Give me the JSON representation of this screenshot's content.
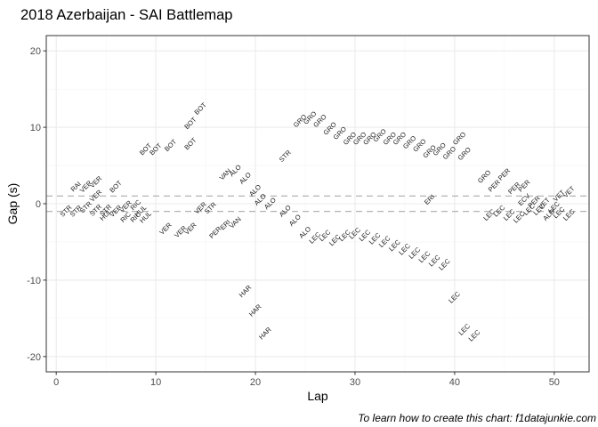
{
  "chart_data": {
    "type": "scatter",
    "title": "2018 Azerbaijan - SAI Battlemap",
    "xlabel": "Lap",
    "ylabel": "Gap (s)",
    "caption": "To learn how to create this chart: f1datajunkie.com",
    "xlim": [
      -1,
      53.5
    ],
    "ylim": [
      -22,
      22
    ],
    "x_ticks": [
      0,
      10,
      20,
      30,
      40,
      50
    ],
    "x_minor_ticks": [
      5,
      15,
      25,
      35,
      45
    ],
    "y_ticks": [
      -20,
      -10,
      0,
      10,
      20
    ],
    "y_minor_ticks": [
      -15,
      -5,
      5,
      15
    ],
    "grid": true,
    "reference_lines": [
      1,
      -1
    ],
    "colors": {
      "default_label": "#1a1a1a",
      "highlight_label": "#f8766d",
      "reference_line": "#b3b3b3",
      "grid_major": "#ebebeb",
      "grid_minor": "#f4f4f4",
      "panel_border": "#333333"
    },
    "points": [
      {
        "x": 1,
        "y": -1.0,
        "label": "STR"
      },
      {
        "x": 2,
        "y": 2.2,
        "label": "RAI"
      },
      {
        "x": 2,
        "y": -1.0,
        "label": "STR"
      },
      {
        "x": 3,
        "y": 2.2,
        "label": "VER"
      },
      {
        "x": 3,
        "y": -0.5,
        "label": "STR"
      },
      {
        "x": 4,
        "y": 2.8,
        "label": "VER"
      },
      {
        "x": 4,
        "y": 1.0,
        "label": "VER"
      },
      {
        "x": 4,
        "y": -0.9,
        "label": "STR"
      },
      {
        "x": 5,
        "y": -0.9,
        "label": "STR"
      },
      {
        "x": 5,
        "y": -1.5,
        "label": "HUL"
      },
      {
        "x": 6,
        "y": -1.0,
        "label": "VER"
      },
      {
        "x": 6,
        "y": 2.2,
        "label": "BOT"
      },
      {
        "x": 7,
        "y": -0.4,
        "label": "VER"
      },
      {
        "x": 7,
        "y": -1.8,
        "label": "RIC"
      },
      {
        "x": 8,
        "y": -0.2,
        "label": "RIC"
      },
      {
        "x": 8,
        "y": -1.8,
        "label": "RIC"
      },
      {
        "x": 8.5,
        "y": -1.0,
        "label": "HUL"
      },
      {
        "x": 9,
        "y": -1.8,
        "label": "HUL"
      },
      {
        "x": 9,
        "y": 7.1,
        "label": "BOT"
      },
      {
        "x": 10,
        "y": 7.1,
        "label": "BOT"
      },
      {
        "x": 11.5,
        "y": 7.6,
        "label": "BOT"
      },
      {
        "x": 13.5,
        "y": 7.8,
        "label": "BOT"
      },
      {
        "x": 13.5,
        "y": 10.5,
        "label": "BOT"
      },
      {
        "x": 14.5,
        "y": 12.4,
        "label": "BOT"
      },
      {
        "x": 11,
        "y": -3.3,
        "label": "VER"
      },
      {
        "x": 12.5,
        "y": -3.7,
        "label": "VER"
      },
      {
        "x": 13.5,
        "y": -3.3,
        "label": "VER"
      },
      {
        "x": 14.5,
        "y": -0.6,
        "label": "VER"
      },
      {
        "x": 15.5,
        "y": -0.6,
        "label": "STR"
      },
      {
        "x": 16,
        "y": -3.8,
        "label": "PER"
      },
      {
        "x": 17,
        "y": -2.8,
        "label": "ERI"
      },
      {
        "x": 18,
        "y": -2.5,
        "label": "VAN"
      },
      {
        "x": 17,
        "y": 3.8,
        "label": "VAN"
      },
      {
        "x": 18,
        "y": 4.3,
        "label": "ALO"
      },
      {
        "x": 19,
        "y": 3.3,
        "label": "ALO"
      },
      {
        "x": 20,
        "y": 1.7,
        "label": "ALO"
      },
      {
        "x": 20.5,
        "y": 0.5,
        "label": "ALO"
      },
      {
        "x": 21.5,
        "y": 0.0,
        "label": "ALO"
      },
      {
        "x": 23,
        "y": -1.0,
        "label": "ALO"
      },
      {
        "x": 24,
        "y": -2.2,
        "label": "ALO"
      },
      {
        "x": 23,
        "y": 6.2,
        "label": "STR"
      },
      {
        "x": 24.5,
        "y": 10.8,
        "label": "GRO"
      },
      {
        "x": 25.5,
        "y": 11.2,
        "label": "GRO"
      },
      {
        "x": 26.5,
        "y": 10.8,
        "label": "GRO"
      },
      {
        "x": 27.5,
        "y": 9.8,
        "label": "GRO"
      },
      {
        "x": 28.5,
        "y": 9.2,
        "label": "GRO"
      },
      {
        "x": 29.5,
        "y": 8.5,
        "label": "GRO"
      },
      {
        "x": 30.5,
        "y": 8.5,
        "label": "GRO"
      },
      {
        "x": 31.5,
        "y": 8.5,
        "label": "GRO"
      },
      {
        "x": 32.5,
        "y": 8.9,
        "label": "GRO"
      },
      {
        "x": 33.5,
        "y": 8.5,
        "label": "GRO"
      },
      {
        "x": 34.5,
        "y": 8.5,
        "label": "GRO"
      },
      {
        "x": 35.5,
        "y": 8.0,
        "label": "GRO"
      },
      {
        "x": 36.5,
        "y": 7.6,
        "label": "GRO"
      },
      {
        "x": 37.5,
        "y": 6.8,
        "label": "GRO"
      },
      {
        "x": 38.5,
        "y": 7.1,
        "label": "GRO"
      },
      {
        "x": 39.5,
        "y": 6.6,
        "label": "GRO"
      },
      {
        "x": 40.5,
        "y": 8.5,
        "label": "GRO"
      },
      {
        "x": 41,
        "y": 6.5,
        "label": "GRO"
      },
      {
        "x": 25,
        "y": -3.8,
        "label": "ALO"
      },
      {
        "x": 26,
        "y": -4.5,
        "label": "LEC"
      },
      {
        "x": 27,
        "y": -4.2,
        "label": "LEC"
      },
      {
        "x": 28,
        "y": -4.8,
        "label": "LEC"
      },
      {
        "x": 29,
        "y": -4.2,
        "label": "LEC"
      },
      {
        "x": 30,
        "y": -3.9,
        "label": "LEC"
      },
      {
        "x": 31,
        "y": -4.2,
        "label": "LEC"
      },
      {
        "x": 32,
        "y": -4.6,
        "label": "LEC"
      },
      {
        "x": 33,
        "y": -5.0,
        "label": "LEC"
      },
      {
        "x": 34,
        "y": -5.5,
        "label": "LEC"
      },
      {
        "x": 35,
        "y": -6.0,
        "label": "LEC"
      },
      {
        "x": 36,
        "y": -6.5,
        "label": "LEC"
      },
      {
        "x": 37,
        "y": -7.0,
        "label": "LEC"
      },
      {
        "x": 38,
        "y": -7.5,
        "label": "LEC"
      },
      {
        "x": 39,
        "y": -8.0,
        "label": "LEC"
      },
      {
        "x": 40,
        "y": -12.3,
        "label": "LEC"
      },
      {
        "x": 41,
        "y": -16.5,
        "label": "LEC"
      },
      {
        "x": 42,
        "y": -17.3,
        "label": "LEC"
      },
      {
        "x": 37.5,
        "y": 0.5,
        "label": "ERI",
        "highlight": true
      },
      {
        "x": 19,
        "y": -11.5,
        "label": "HAR"
      },
      {
        "x": 20,
        "y": -14.0,
        "label": "HAR"
      },
      {
        "x": 21,
        "y": -17.0,
        "label": "HAR"
      },
      {
        "x": 43,
        "y": 3.5,
        "label": "GRO"
      },
      {
        "x": 44,
        "y": 2.3,
        "label": "PER"
      },
      {
        "x": 45,
        "y": 3.8,
        "label": "PER"
      },
      {
        "x": 46,
        "y": 2.0,
        "label": "PER"
      },
      {
        "x": 47,
        "y": 2.3,
        "label": "PER"
      },
      {
        "x": 43.5,
        "y": -1.5,
        "label": "LEC"
      },
      {
        "x": 44.5,
        "y": -1.0,
        "label": "LEC"
      },
      {
        "x": 45.5,
        "y": -1.5,
        "label": "LEC"
      },
      {
        "x": 46.5,
        "y": -1.8,
        "label": "LEC"
      },
      {
        "x": 47.5,
        "y": -0.8,
        "label": "LEC"
      },
      {
        "x": 48,
        "y": 0.2,
        "label": "PER"
      },
      {
        "x": 48.5,
        "y": -0.8,
        "label": "LEC"
      },
      {
        "x": 49,
        "y": 0.0,
        "label": "VET"
      },
      {
        "x": 49.5,
        "y": -1.5,
        "label": "ALO"
      },
      {
        "x": 50,
        "y": -0.5,
        "label": "LEC"
      },
      {
        "x": 50.5,
        "y": 1.0,
        "label": "VET"
      },
      {
        "x": 51.5,
        "y": 1.5,
        "label": "VET"
      },
      {
        "x": 50.5,
        "y": -1.2,
        "label": "LEC"
      },
      {
        "x": 51.5,
        "y": -1.5,
        "label": "LEC"
      },
      {
        "x": 47,
        "y": 0.5,
        "label": "ECV"
      }
    ]
  }
}
